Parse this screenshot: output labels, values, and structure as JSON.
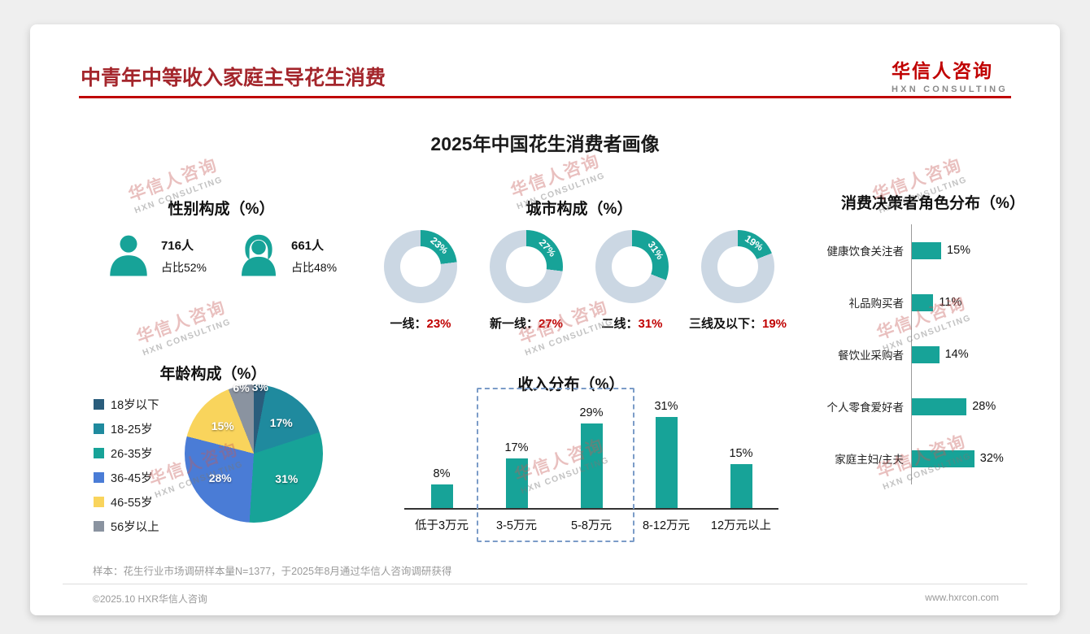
{
  "colors": {
    "teal": "#17A398",
    "red": "#C00000",
    "title_red": "#A4262C",
    "donut_track": "#CBD7E3",
    "pie": [
      "#2A5D7C",
      "#1F8A9E",
      "#17A398",
      "#4A7CD6",
      "#F9D45C",
      "#8A93A0"
    ],
    "dashed_box": "#7B9CC8"
  },
  "watermark": {
    "line1": "华信人咨询",
    "line2": "HXN CONSULTING"
  },
  "header": {
    "title": "中青年中等收入家庭主导花生消费",
    "logo_cn": "华信人咨询",
    "logo_en": "HXN CONSULTING"
  },
  "main_title": "2025年中国花生消费者画像",
  "gender": {
    "title": "性别构成（%）",
    "male": {
      "count": "716人",
      "share": "占比52%"
    },
    "female": {
      "count": "661人",
      "share": "占比48%"
    }
  },
  "city": {
    "title": "城市构成（%）",
    "items": [
      {
        "label": "一线：",
        "value": 23,
        "display": "23%"
      },
      {
        "label": "新一线：",
        "value": 27,
        "display": "27%"
      },
      {
        "label": "二线：",
        "value": 31,
        "display": "31%"
      },
      {
        "label": "三线及以下：",
        "value": 19,
        "display": "19%"
      }
    ]
  },
  "age": {
    "title": "年龄构成（%）",
    "segments": [
      {
        "label": "18岁以下",
        "value": 3
      },
      {
        "label": "18-25岁",
        "value": 17
      },
      {
        "label": "26-35岁",
        "value": 31
      },
      {
        "label": "36-45岁",
        "value": 28
      },
      {
        "label": "46-55岁",
        "value": 15
      },
      {
        "label": "56岁以上",
        "value": 6
      }
    ]
  },
  "income": {
    "title": "收入分布（%）",
    "items": [
      {
        "label": "低于3万元",
        "value": 8
      },
      {
        "label": "3-5万元",
        "value": 17
      },
      {
        "label": "5-8万元",
        "value": 29
      },
      {
        "label": "8-12万元",
        "value": 31
      },
      {
        "label": "12万元以上",
        "value": 15
      }
    ]
  },
  "decision": {
    "title": "消费决策者角色分布（%）",
    "items": [
      {
        "label": "健康饮食关注者",
        "value": 15
      },
      {
        "label": "礼品购买者",
        "value": 11
      },
      {
        "label": "餐饮业采购者",
        "value": 14
      },
      {
        "label": "个人零食爱好者",
        "value": 28
      },
      {
        "label": "家庭主妇/主夫",
        "value": 32
      }
    ]
  },
  "footnote": "样本：花生行业市场调研样本量N=1377，于2025年8月通过华信人咨询调研获得",
  "footer": {
    "left": "©2025.10 HXR华信人咨询",
    "right": "www.hxrcon.com"
  },
  "chart_data": [
    {
      "type": "pie",
      "variant": "donut-set",
      "title": "城市构成（%）",
      "categories": [
        "一线",
        "新一线",
        "二线",
        "三线及以下"
      ],
      "values": [
        23,
        27,
        31,
        19
      ]
    },
    {
      "type": "pie",
      "title": "年龄构成（%）",
      "categories": [
        "18岁以下",
        "18-25岁",
        "26-35岁",
        "36-45岁",
        "46-55岁",
        "56岁以上"
      ],
      "values": [
        3,
        17,
        31,
        28,
        15,
        6
      ],
      "legend_position": "left"
    },
    {
      "type": "bar",
      "title": "收入分布（%）",
      "categories": [
        "低于3万元",
        "3-5万元",
        "5-8万元",
        "8-12万元",
        "12万元以上"
      ],
      "values": [
        8,
        17,
        29,
        31,
        15
      ],
      "ylim": [
        0,
        35
      ],
      "annotation": "dashed highlight box around 3-5万元 and 5-8万元"
    },
    {
      "type": "bar",
      "orientation": "horizontal",
      "title": "消费决策者角色分布（%）",
      "categories": [
        "健康饮食关注者",
        "礼品购买者",
        "餐饮业采购者",
        "个人零食爱好者",
        "家庭主妇/主夫"
      ],
      "values": [
        15,
        11,
        14,
        28,
        32
      ]
    },
    {
      "type": "table",
      "title": "性别构成（%）",
      "rows": [
        [
          "716人",
          "占比52%"
        ],
        [
          "661人",
          "占比48%"
        ]
      ]
    }
  ]
}
